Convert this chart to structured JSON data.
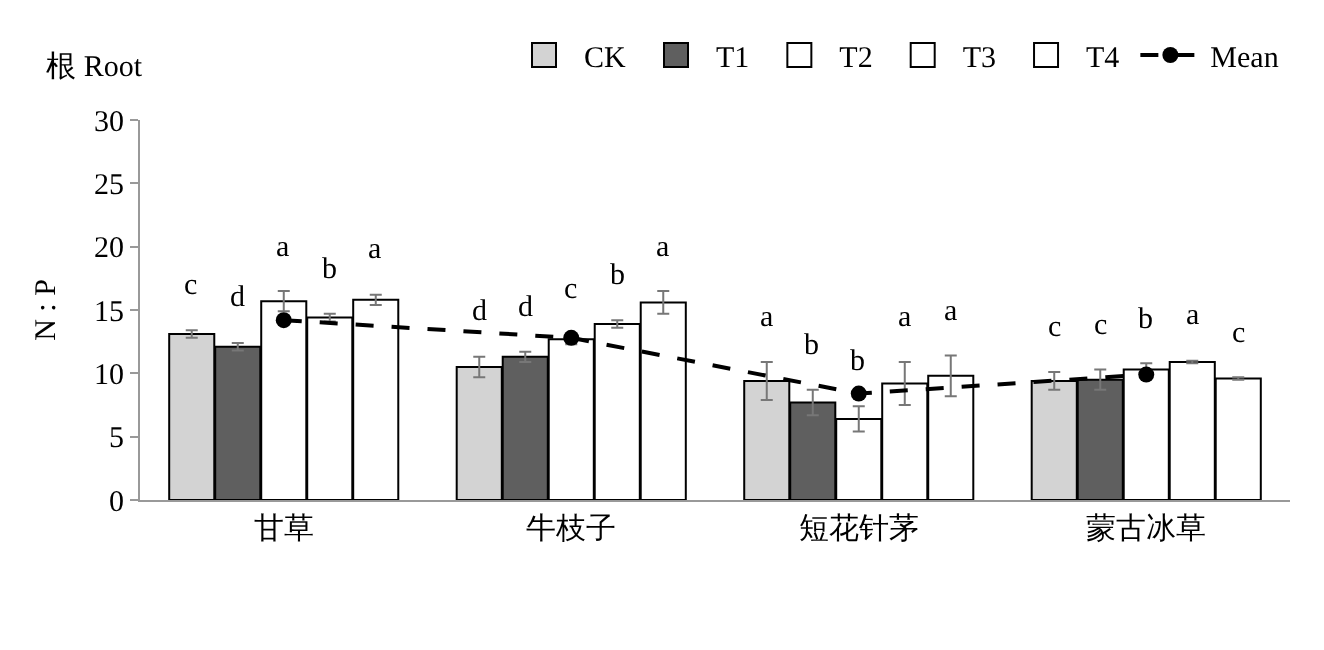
{
  "chart_data": {
    "type": "bar",
    "title": "根 Root",
    "ylabel": "N : P",
    "categories": [
      "甘草",
      "牛枝子",
      "短花针茅",
      "蒙古冰草"
    ],
    "series": [
      {
        "name": "CK",
        "color": "#d3d3d3",
        "values": [
          13.1,
          10.5,
          9.4,
          9.4
        ],
        "errors": [
          0.3,
          0.8,
          1.5,
          0.7
        ],
        "value_labels": [
          "c",
          "d",
          "a",
          "c"
        ]
      },
      {
        "name": "T1",
        "color": "#5f5f5f",
        "values": [
          12.1,
          11.3,
          7.7,
          9.5
        ],
        "errors": [
          0.3,
          0.4,
          1.0,
          0.8
        ],
        "value_labels": [
          "d",
          "d",
          "b",
          "c"
        ]
      },
      {
        "name": "T2",
        "color": "#ffffff",
        "values": [
          15.7,
          12.7,
          6.4,
          10.3
        ],
        "errors": [
          0.8,
          0.4,
          1.0,
          0.5
        ],
        "value_labels": [
          "a",
          "c",
          "b",
          "b"
        ]
      },
      {
        "name": "T3",
        "color": "#ffffff",
        "values": [
          14.4,
          13.9,
          9.2,
          10.9
        ],
        "errors": [
          0.3,
          0.3,
          1.7,
          0.1
        ],
        "value_labels": [
          "b",
          "b",
          "a",
          "a"
        ]
      },
      {
        "name": "T4",
        "color": "#ffffff",
        "values": [
          15.8,
          15.6,
          9.8,
          9.6
        ],
        "errors": [
          0.4,
          0.9,
          1.6,
          0.1
        ],
        "value_labels": [
          "a",
          "a",
          "a",
          "c"
        ]
      },
      {
        "name": "Mean",
        "type": "line",
        "color": "#000000",
        "line_style": "dashed",
        "marker": "circle",
        "values": [
          14.2,
          12.8,
          8.4,
          9.9
        ]
      }
    ],
    "ylim": [
      0,
      30
    ],
    "yticks": [
      0,
      5,
      10,
      15,
      20,
      25,
      30
    ],
    "legend": "top right"
  }
}
